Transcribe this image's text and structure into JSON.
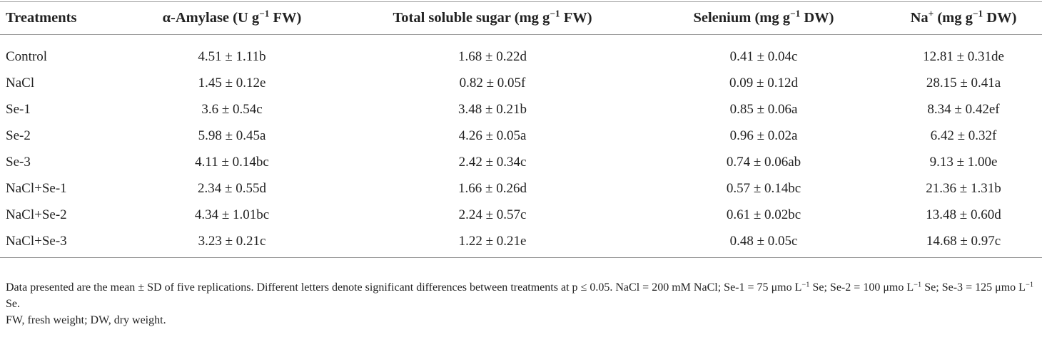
{
  "table": {
    "header": [
      [
        "Treatments"
      ],
      [
        "α-Amylase (U g",
        "−1",
        " FW)"
      ],
      [
        "Total soluble sugar (mg g",
        "−1",
        " FW)"
      ],
      [
        "Selenium (mg g",
        "−1",
        " DW)"
      ],
      [
        "Na",
        "+",
        " (mg g",
        "−1",
        " DW)"
      ]
    ],
    "rows": [
      [
        "Control",
        "4.51 ± 1.11b",
        "1.68 ± 0.22d",
        "0.41 ± 0.04c",
        "12.81 ± 0.31de"
      ],
      [
        "NaCl",
        "1.45 ± 0.12e",
        "0.82 ± 0.05f",
        "0.09 ± 0.12d",
        "28.15 ± 0.41a"
      ],
      [
        "Se-1",
        "3.6 ± 0.54c",
        "3.48 ± 0.21b",
        "0.85 ± 0.06a",
        "8.34 ± 0.42ef"
      ],
      [
        "Se-2",
        "5.98 ± 0.45a",
        "4.26 ± 0.05a",
        "0.96 ± 0.02a",
        "6.42 ± 0.32f"
      ],
      [
        "Se-3",
        "4.11 ± 0.14bc",
        "2.42 ± 0.34c",
        "0.74 ± 0.06ab",
        "9.13 ± 1.00e"
      ],
      [
        "NaCl+Se-1",
        "2.34 ± 0.55d",
        "1.66 ± 0.26d",
        "0.57 ± 0.14bc",
        "21.36 ± 1.31b"
      ],
      [
        "NaCl+Se-2",
        "4.34 ± 1.01bc",
        "2.24 ± 0.57c",
        "0.61 ± 0.02bc",
        "13.48 ± 0.60d"
      ],
      [
        "NaCl+Se-3",
        "3.23 ± 0.21c",
        "1.22 ± 0.21e",
        "0.48 ± 0.05c",
        "14.68 ± 0.97c"
      ]
    ]
  },
  "notes": [
    [
      "Data presented are the mean ± SD of five replications. Different letters denote significant differences between treatments at p ≤ 0.05. NaCl = 200 mM NaCl; Se-1 = 75 μmo L",
      "−1",
      " Se; Se-2 = 100 μmo L",
      "−1",
      " Se; Se-3 = 125 μmo L",
      "−1",
      " Se."
    ],
    [
      "FW, fresh weight; DW, dry weight."
    ]
  ]
}
